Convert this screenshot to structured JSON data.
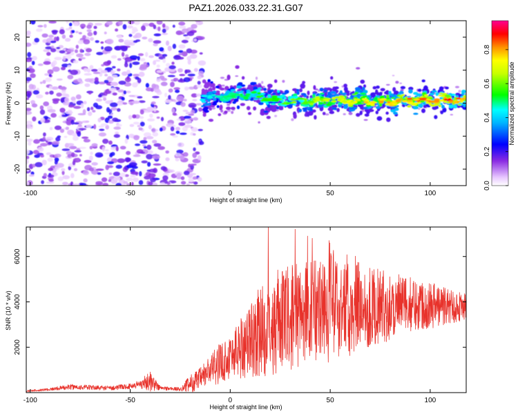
{
  "title": "PAZ1.2026.033.22.31.G07",
  "chart_data": [
    {
      "type": "heatmap",
      "name": "spectrogram",
      "xlabel": "Height of straight line (km)",
      "ylabel": "Frequency (Hz)",
      "xlim": [
        -102,
        118
      ],
      "ylim": [
        -25,
        25
      ],
      "xticks": [
        "-100",
        "-50",
        "0",
        "50",
        "100"
      ],
      "xtick_values": [
        -100,
        -50,
        0,
        50,
        100
      ],
      "yticks": [
        "-20",
        "-10",
        "0",
        "10",
        "20"
      ],
      "ytick_values": [
        -20,
        -10,
        0,
        10,
        20
      ],
      "noise_region_end_km": -14,
      "signal_frequency_hz": [
        [
          -14,
          1.5
        ],
        [
          0,
          2.0
        ],
        [
          10,
          3.0
        ],
        [
          25,
          0.5
        ],
        [
          50,
          1.0
        ],
        [
          75,
          0.5
        ],
        [
          100,
          1.0
        ],
        [
          118,
          1.0
        ]
      ],
      "colorbar": {
        "label": "Normalized spectral amplitude",
        "ticks": [
          "0.0",
          "0.2",
          "0.4",
          "0.6",
          "0.8"
        ],
        "tick_values": [
          0.0,
          0.2,
          0.4,
          0.6,
          0.8
        ],
        "range": [
          0,
          0.97
        ]
      }
    },
    {
      "type": "line",
      "name": "snr",
      "xlabel": "Height of straight line (km)",
      "ylabel": "SNR (10 * v/v)",
      "xlim": [
        -102,
        118
      ],
      "ylim": [
        0,
        7300
      ],
      "xticks": [
        "-100",
        "-50",
        "0",
        "50",
        "100"
      ],
      "xtick_values": [
        -100,
        -50,
        0,
        50,
        100
      ],
      "yticks": [
        "2000",
        "4000",
        "6000"
      ],
      "ytick_values": [
        2000,
        4000,
        6000
      ],
      "color": "#e8322b",
      "envelope": {
        "x": [
          -102,
          -90,
          -80,
          -60,
          -50,
          -45,
          -40,
          -35,
          -25,
          -20,
          -15,
          -10,
          -5,
          0,
          5,
          10,
          15,
          20,
          30,
          40,
          50,
          60,
          70,
          80,
          90,
          100,
          110,
          118
        ],
        "mean": [
          60,
          150,
          250,
          200,
          280,
          380,
          500,
          200,
          150,
          400,
          600,
          1000,
          1300,
          1600,
          2000,
          2300,
          2700,
          3000,
          3300,
          3600,
          3800,
          3900,
          3800,
          3800,
          3900,
          3900,
          3800,
          3800
        ],
        "spread": [
          40,
          60,
          120,
          100,
          120,
          200,
          450,
          100,
          80,
          400,
          500,
          700,
          900,
          1000,
          1400,
          1700,
          2000,
          2300,
          2300,
          2400,
          2500,
          2300,
          1800,
          1500,
          1200,
          1100,
          800,
          600
        ]
      },
      "peak_values": [
        7300,
        7200,
        6900,
        6800,
        6700,
        6600
      ]
    }
  ]
}
